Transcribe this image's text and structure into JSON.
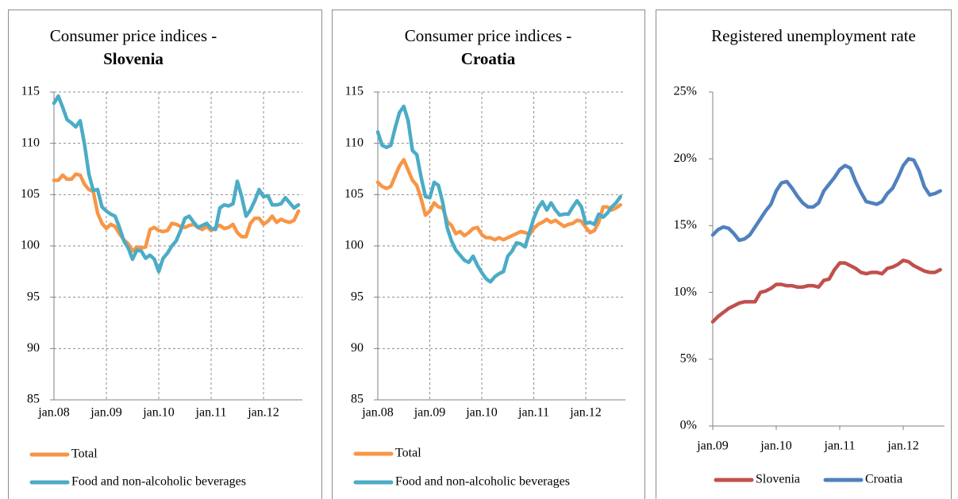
{
  "chart_data": [
    {
      "type": "line",
      "title": "Consumer price indices -",
      "subtitle": "Slovenia",
      "categories": [
        "jan.08",
        null,
        null,
        null,
        null,
        null,
        null,
        null,
        null,
        null,
        null,
        null,
        "jan.09",
        null,
        null,
        null,
        null,
        null,
        null,
        null,
        null,
        null,
        null,
        null,
        "jan.10",
        null,
        null,
        null,
        null,
        null,
        null,
        null,
        null,
        null,
        null,
        null,
        "jan.11",
        null,
        null,
        null,
        null,
        null,
        null,
        null,
        null,
        null,
        null,
        null,
        "jan.12",
        null,
        null,
        null,
        null,
        null,
        null,
        null,
        null
      ],
      "series": [
        {
          "name": "Total",
          "color": "#f79646",
          "values": [
            106.4,
            106.4,
            106.9,
            106.5,
            106.5,
            107.0,
            106.9,
            106.0,
            105.5,
            105.3,
            103.2,
            102.2,
            101.7,
            102.1,
            101.9,
            101.2,
            100.6,
            100.2,
            99.5,
            99.9,
            99.8,
            99.9,
            101.6,
            101.8,
            101.5,
            101.4,
            101.5,
            102.2,
            102.1,
            101.9,
            101.8,
            102.0,
            102.1,
            101.8,
            101.6,
            101.9,
            101.5,
            101.8,
            102.0,
            101.7,
            101.8,
            102.1,
            101.3,
            100.9,
            100.9,
            102.2,
            102.7,
            102.7,
            102.1,
            102.4,
            102.9,
            102.3,
            102.6,
            102.4,
            102.3,
            102.5,
            103.4
          ]
        },
        {
          "name": "Food and non-alcoholic beverages",
          "color": "#4bacc6",
          "values": [
            113.9,
            114.6,
            113.5,
            112.3,
            112.0,
            111.6,
            112.2,
            109.9,
            107.0,
            105.4,
            105.5,
            103.8,
            103.4,
            103.1,
            102.9,
            101.8,
            100.5,
            99.8,
            98.7,
            99.6,
            99.5,
            98.8,
            99.1,
            98.7,
            97.5,
            98.8,
            99.3,
            100.0,
            100.5,
            101.5,
            102.7,
            102.9,
            102.3,
            101.8,
            102.0,
            102.2,
            101.7,
            101.6,
            103.7,
            104.0,
            103.9,
            104.1,
            106.3,
            104.8,
            102.9,
            103.5,
            104.4,
            105.5,
            104.8,
            104.9,
            104.0,
            104.0,
            104.1,
            104.7,
            104.2,
            103.7,
            104.0
          ]
        }
      ],
      "ylim": [
        85,
        115
      ],
      "yticks": [
        85,
        90,
        95,
        100,
        105,
        110,
        115
      ],
      "grid": true
    },
    {
      "type": "line",
      "title": "Consumer price indices -",
      "subtitle": "Croatia",
      "categories": [
        "jan.08",
        null,
        null,
        null,
        null,
        null,
        null,
        null,
        null,
        null,
        null,
        null,
        "jan.09",
        null,
        null,
        null,
        null,
        null,
        null,
        null,
        null,
        null,
        null,
        null,
        "jan.10",
        null,
        null,
        null,
        null,
        null,
        null,
        null,
        null,
        null,
        null,
        null,
        "jan.11",
        null,
        null,
        null,
        null,
        null,
        null,
        null,
        null,
        null,
        null,
        null,
        "jan.12",
        null,
        null,
        null,
        null,
        null,
        null,
        null,
        null
      ],
      "series": [
        {
          "name": "Total",
          "color": "#f79646",
          "values": [
            106.2,
            105.8,
            105.6,
            105.8,
            106.8,
            107.8,
            108.4,
            107.4,
            106.4,
            105.9,
            104.6,
            103.0,
            103.4,
            104.2,
            103.8,
            103.7,
            102.4,
            102.0,
            101.2,
            101.4,
            101.0,
            101.3,
            101.7,
            101.8,
            101.1,
            100.8,
            100.8,
            100.6,
            100.8,
            100.6,
            100.8,
            101.0,
            101.2,
            101.4,
            101.3,
            101.1,
            101.7,
            102.1,
            102.3,
            102.6,
            102.3,
            102.5,
            102.2,
            101.9,
            102.1,
            102.2,
            102.5,
            102.4,
            101.8,
            101.3,
            101.5,
            102.3,
            103.8,
            103.8,
            103.5,
            103.7,
            104.0
          ]
        },
        {
          "name": "Food and non-alcoholic beverages",
          "color": "#4bacc6",
          "values": [
            111.1,
            109.8,
            109.6,
            109.8,
            111.5,
            113.0,
            113.6,
            112.2,
            109.3,
            108.9,
            106.7,
            104.8,
            104.7,
            106.2,
            105.9,
            104.2,
            101.8,
            100.5,
            99.6,
            99.1,
            98.6,
            98.4,
            99.0,
            98.1,
            97.4,
            96.8,
            96.5,
            97.0,
            97.3,
            97.5,
            99.0,
            99.5,
            100.3,
            100.2,
            99.9,
            101.3,
            102.7,
            103.7,
            104.3,
            103.5,
            104.2,
            103.5,
            103.0,
            103.1,
            103.1,
            103.8,
            104.4,
            103.8,
            102.2,
            102.3,
            102.1,
            103.1,
            102.8,
            103.2,
            103.8,
            104.2,
            104.8
          ]
        }
      ],
      "ylim": [
        85,
        115
      ],
      "yticks": [
        85,
        90,
        95,
        100,
        105,
        110,
        115
      ],
      "grid": true
    },
    {
      "type": "line",
      "title": "Registered unemployment rate",
      "categories": [
        "jan.09",
        null,
        null,
        null,
        null,
        null,
        null,
        null,
        null,
        null,
        null,
        null,
        "jan.10",
        null,
        null,
        null,
        null,
        null,
        null,
        null,
        null,
        null,
        null,
        null,
        "jan.11",
        null,
        null,
        null,
        null,
        null,
        null,
        null,
        null,
        null,
        null,
        null,
        "jan.12",
        null,
        null,
        null,
        null,
        null,
        null,
        null
      ],
      "series": [
        {
          "name": "Slovenia",
          "color": "#c0504d",
          "values": [
            7.8,
            8.2,
            8.5,
            8.8,
            9.0,
            9.2,
            9.3,
            9.3,
            9.3,
            10.0,
            10.1,
            10.3,
            10.6,
            10.6,
            10.5,
            10.5,
            10.4,
            10.4,
            10.5,
            10.5,
            10.4,
            10.9,
            11.0,
            11.7,
            12.2,
            12.2,
            12.0,
            11.8,
            11.5,
            11.4,
            11.5,
            11.5,
            11.4,
            11.8,
            11.9,
            12.1,
            12.4,
            12.3,
            12.0,
            11.8,
            11.6,
            11.5,
            11.5,
            11.7
          ]
        },
        {
          "name": "Croatia",
          "color": "#4f81bd",
          "values": [
            14.3,
            14.7,
            14.9,
            14.8,
            14.4,
            13.9,
            14.0,
            14.3,
            14.9,
            15.5,
            16.1,
            16.6,
            17.6,
            18.2,
            18.3,
            17.8,
            17.2,
            16.7,
            16.4,
            16.4,
            16.7,
            17.6,
            18.1,
            18.6,
            19.2,
            19.5,
            19.3,
            18.3,
            17.5,
            16.8,
            16.7,
            16.6,
            16.8,
            17.4,
            17.8,
            18.6,
            19.5,
            20.0,
            19.9,
            19.1,
            17.9,
            17.3,
            17.4,
            17.6
          ]
        }
      ],
      "ylim": [
        0,
        25
      ],
      "yticks": [
        {
          "value": 0,
          "label": "0%"
        },
        {
          "value": 5,
          "label": "5%"
        },
        {
          "value": 10,
          "label": "10%"
        },
        {
          "value": 15,
          "label": "15%"
        },
        {
          "value": 20,
          "label": "20%"
        },
        {
          "value": 25,
          "label": "25%"
        }
      ],
      "grid": false
    }
  ]
}
